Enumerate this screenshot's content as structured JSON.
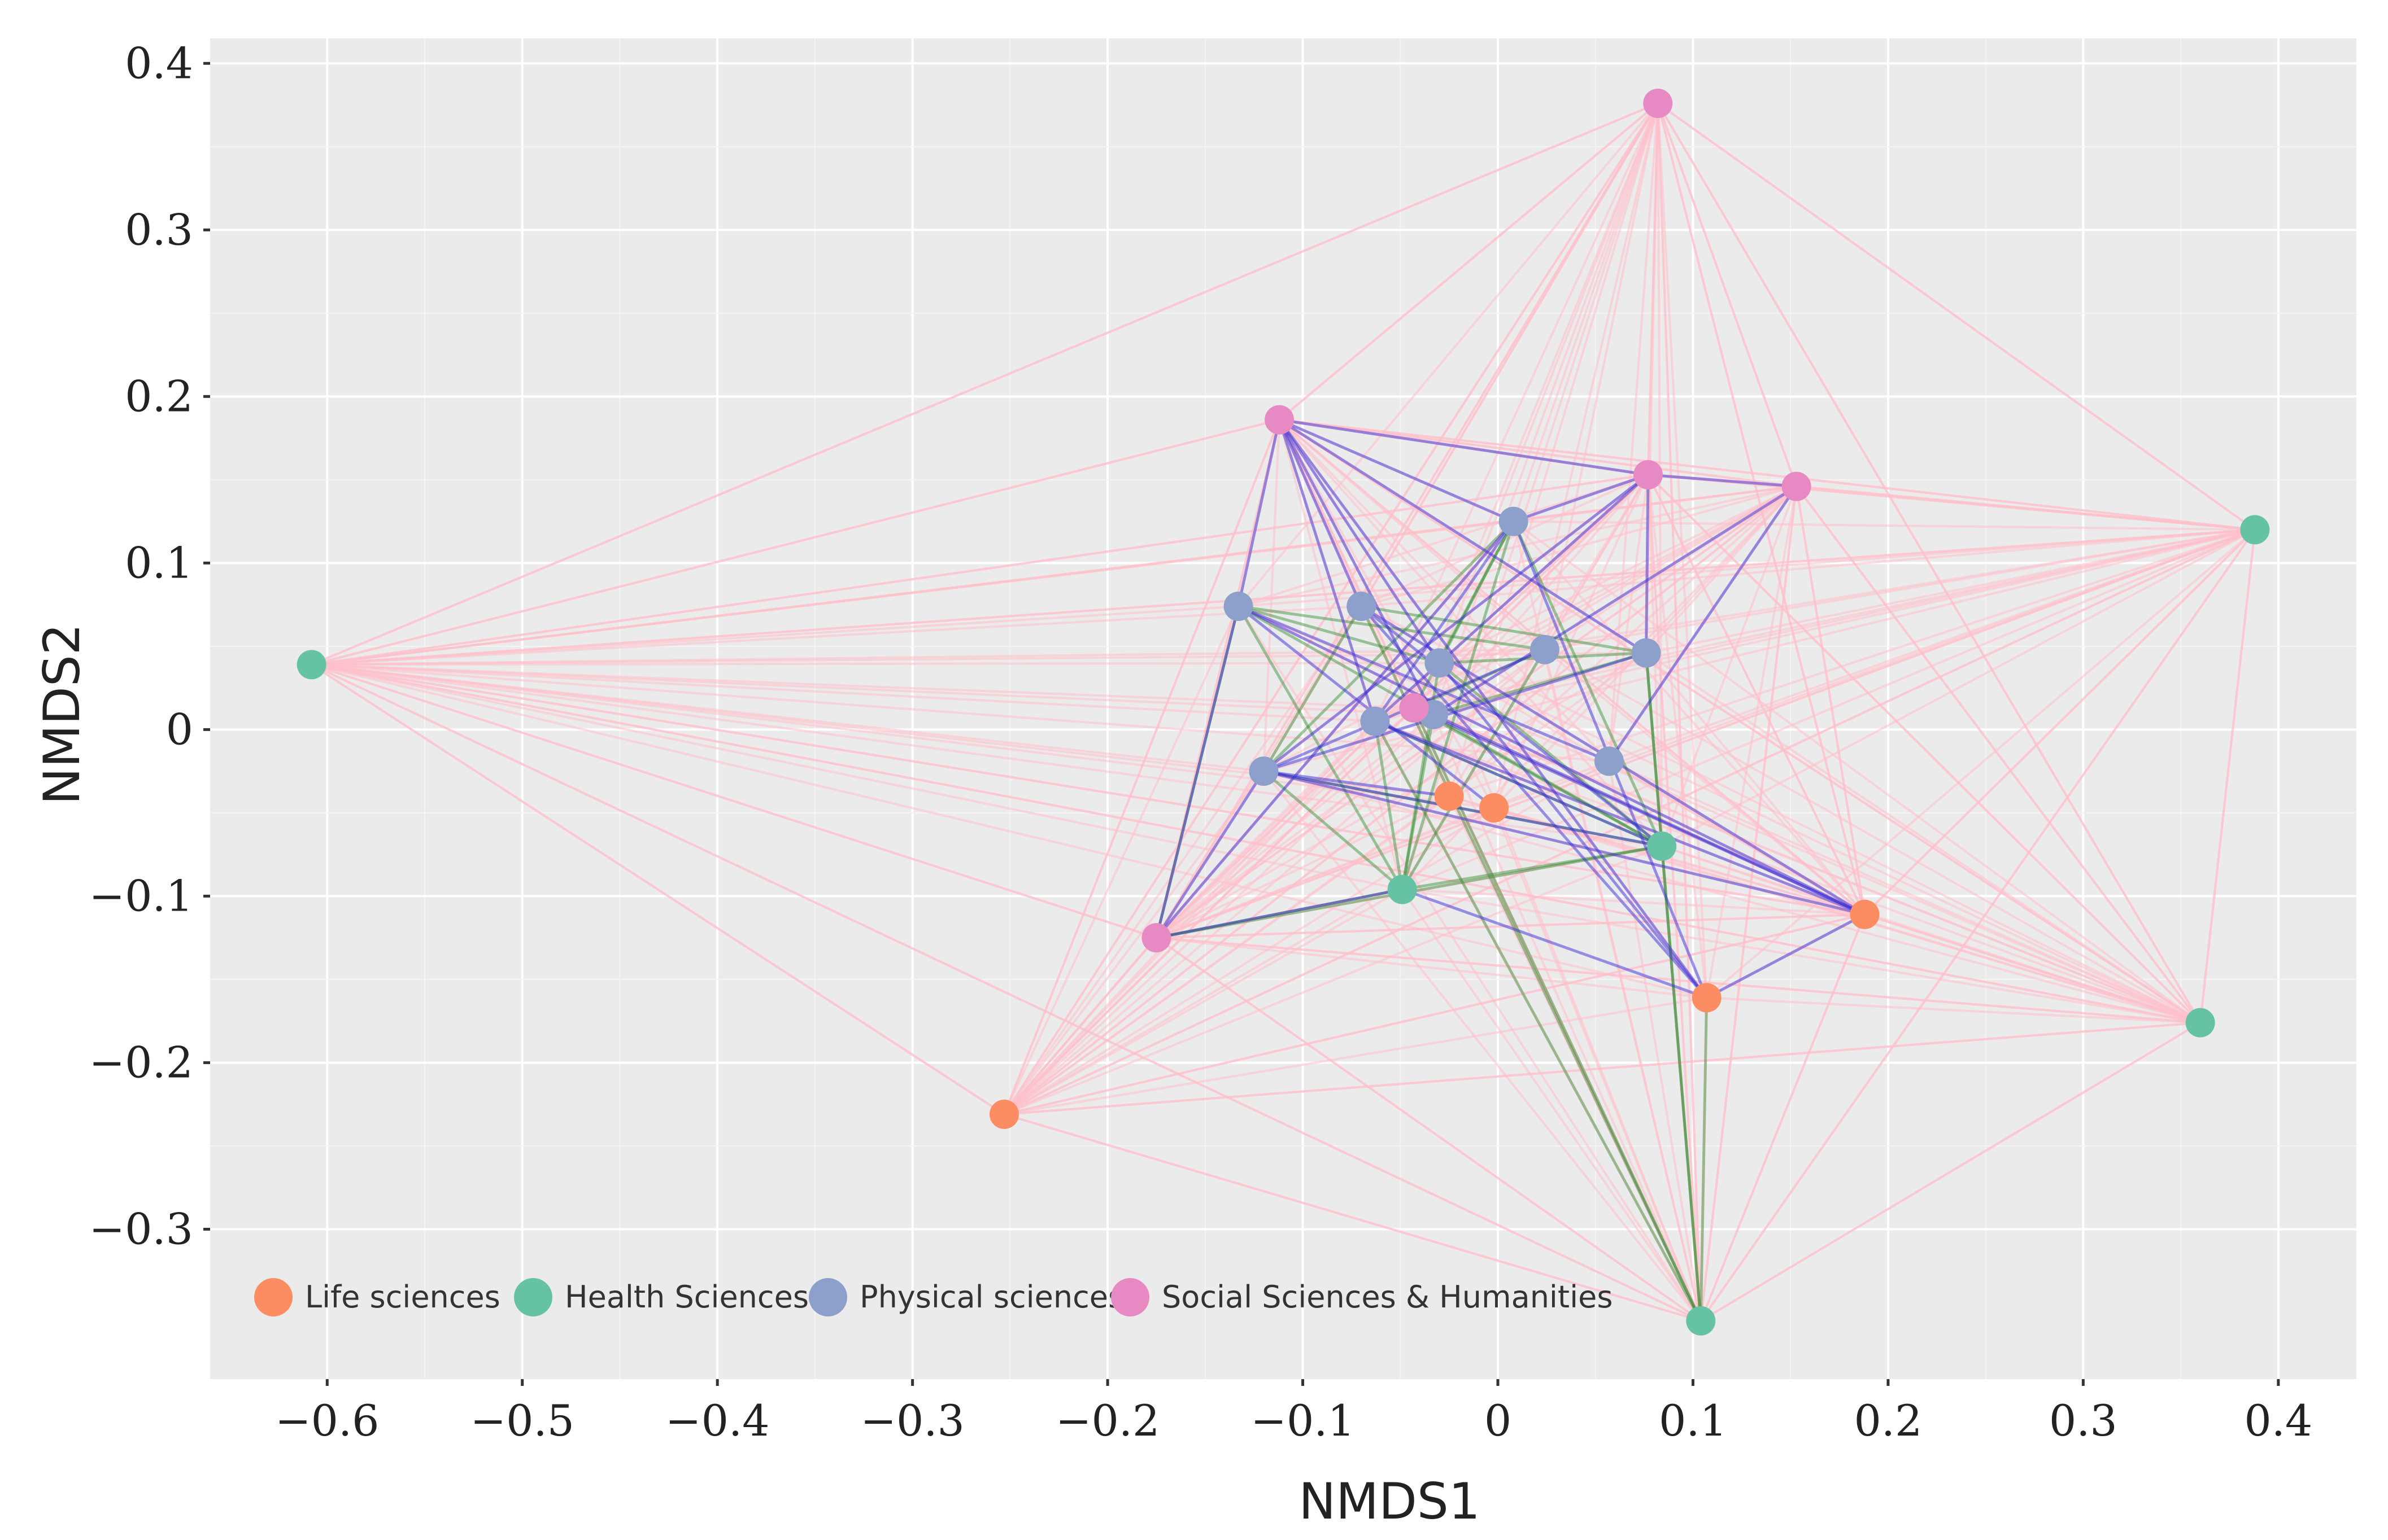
{
  "chart_data": {
    "type": "scatter",
    "subtype": "network",
    "xlabel": "NMDS1",
    "ylabel": "NMDS2",
    "xlim": [
      -0.66,
      0.44
    ],
    "ylim": [
      -0.39,
      0.415
    ],
    "xticks": [
      -0.6,
      -0.5,
      -0.4,
      -0.3,
      -0.2,
      -0.1,
      0,
      0.1,
      0.2,
      0.3,
      0.4
    ],
    "xtick_labels": [
      "−0.6",
      "−0.5",
      "−0.4",
      "−0.3",
      "−0.2",
      "−0.1",
      "0",
      "0.1",
      "0.2",
      "0.3",
      "0.4"
    ],
    "yticks": [
      0.4,
      0.3,
      0.2,
      0.1,
      0,
      -0.1,
      -0.2,
      -0.3
    ],
    "ytick_labels": [
      "0.4",
      "0.3",
      "0.2",
      "0.1",
      "0",
      "−0.1",
      "−0.2",
      "−0.3"
    ],
    "grid": true,
    "legend_position": "bottom-left",
    "series": [
      {
        "name": "Life sciences",
        "color": "#fc8d62",
        "points": [
          [
            -0.025,
            -0.04
          ],
          [
            -0.002,
            -0.047
          ],
          [
            0.188,
            -0.111
          ],
          [
            0.107,
            -0.161
          ],
          [
            -0.253,
            -0.231
          ]
        ]
      },
      {
        "name": "Health Sciences",
        "color": "#66c2a5",
        "points": [
          [
            -0.608,
            0.039
          ],
          [
            0.388,
            0.12
          ],
          [
            0.084,
            -0.07
          ],
          [
            -0.049,
            -0.096
          ],
          [
            0.36,
            -0.176
          ],
          [
            0.104,
            -0.355
          ]
        ]
      },
      {
        "name": "Physical sciences",
        "color": "#8da0cb",
        "points": [
          [
            0.008,
            0.125
          ],
          [
            -0.133,
            0.074
          ],
          [
            -0.07,
            0.074
          ],
          [
            0.024,
            0.048
          ],
          [
            0.076,
            0.046
          ],
          [
            -0.03,
            0.04
          ],
          [
            -0.063,
            0.005
          ],
          [
            -0.033,
            0.009
          ],
          [
            0.057,
            -0.019
          ],
          [
            -0.12,
            -0.025
          ]
        ]
      },
      {
        "name": "Social Sciences & Humanities",
        "color": "#e78ac3",
        "points": [
          [
            0.082,
            0.376
          ],
          [
            -0.112,
            0.186
          ],
          [
            0.077,
            0.153
          ],
          [
            0.153,
            0.146
          ],
          [
            -0.043,
            0.013
          ],
          [
            -0.175,
            -0.125
          ]
        ]
      }
    ],
    "edge_colors": {
      "social_links": "#ffc0cb",
      "physical_links": "#3a2fd8",
      "health_links": "#2e8b2e"
    },
    "edges": {
      "blue": [
        [
          3,
          1,
          2,
          0
        ],
        [
          3,
          1,
          3,
          2
        ],
        [
          3,
          1,
          2,
          1
        ],
        [
          3,
          1,
          2,
          2
        ],
        [
          3,
          1,
          2,
          5
        ],
        [
          3,
          1,
          2,
          6
        ],
        [
          3,
          1,
          2,
          7
        ],
        [
          3,
          1,
          0,
          3
        ],
        [
          3,
          1,
          2,
          4
        ],
        [
          3,
          2,
          3,
          3
        ],
        [
          3,
          2,
          2,
          0
        ],
        [
          3,
          2,
          2,
          4
        ],
        [
          3,
          2,
          2,
          6
        ],
        [
          3,
          2,
          2,
          9
        ],
        [
          3,
          3,
          2,
          8
        ],
        [
          3,
          3,
          2,
          7
        ],
        [
          2,
          1,
          0,
          2
        ],
        [
          2,
          1,
          0,
          1
        ],
        [
          2,
          1,
          2,
          8
        ],
        [
          2,
          9,
          0,
          2
        ],
        [
          2,
          9,
          1,
          2
        ],
        [
          2,
          9,
          0,
          0
        ],
        [
          2,
          9,
          2,
          4
        ],
        [
          3,
          5,
          2,
          0
        ],
        [
          3,
          5,
          2,
          1
        ],
        [
          3,
          5,
          2,
          9
        ],
        [
          3,
          5,
          1,
          3
        ],
        [
          2,
          2,
          0,
          2
        ],
        [
          2,
          2,
          0,
          3
        ],
        [
          2,
          6,
          0,
          2
        ],
        [
          2,
          0,
          0,
          3
        ],
        [
          2,
          7,
          0,
          2
        ],
        [
          2,
          3,
          2,
          9
        ],
        [
          0,
          2,
          0,
          3
        ],
        [
          1,
          3,
          0,
          3
        ],
        [
          2,
          0,
          2,
          6
        ],
        [
          2,
          5,
          0,
          3
        ],
        [
          2,
          2,
          1,
          2
        ],
        [
          2,
          6,
          1,
          2
        ],
        [
          3,
          4,
          0,
          2
        ]
      ],
      "green": [
        [
          2,
          1,
          1,
          2
        ],
        [
          2,
          1,
          1,
          3
        ],
        [
          2,
          1,
          3,
          5
        ],
        [
          2,
          1,
          2,
          3
        ],
        [
          2,
          1,
          2,
          5
        ],
        [
          1,
          3,
          2,
          0
        ],
        [
          1,
          3,
          2,
          3
        ],
        [
          1,
          3,
          2,
          5
        ],
        [
          1,
          3,
          2,
          6
        ],
        [
          1,
          3,
          2,
          9
        ],
        [
          1,
          3,
          3,
          5
        ],
        [
          1,
          3,
          1,
          2
        ],
        [
          1,
          2,
          2,
          0
        ],
        [
          1,
          2,
          2,
          4
        ],
        [
          1,
          2,
          2,
          5
        ],
        [
          1,
          2,
          2,
          6
        ],
        [
          1,
          2,
          2,
          9
        ],
        [
          1,
          2,
          3,
          4
        ],
        [
          1,
          2,
          3,
          5
        ],
        [
          1,
          5,
          1,
          2
        ],
        [
          1,
          5,
          2,
          4
        ],
        [
          1,
          5,
          2,
          6
        ],
        [
          1,
          5,
          0,
          3
        ],
        [
          1,
          5,
          2,
          2
        ],
        [
          2,
          2,
          2,
          4
        ],
        [
          2,
          2,
          2,
          9
        ],
        [
          2,
          0,
          2,
          5
        ],
        [
          2,
          0,
          2,
          9
        ],
        [
          3,
          4,
          2,
          3
        ],
        [
          3,
          4,
          2,
          0
        ],
        [
          2,
          7,
          2,
          4
        ],
        [
          2,
          7,
          1,
          3
        ],
        [
          2,
          5,
          2,
          4
        ],
        [
          1,
          5,
          3,
          4
        ]
      ],
      "pink_hubs": [
        [
          3,
          0
        ],
        [
          1,
          1
        ],
        [
          1,
          4
        ],
        [
          0,
          4
        ],
        [
          3,
          5
        ],
        [
          1,
          0
        ],
        [
          1,
          5
        ],
        [
          3,
          3
        ],
        [
          3,
          1
        ],
        [
          0,
          2
        ],
        [
          3,
          2
        ]
      ]
    }
  }
}
